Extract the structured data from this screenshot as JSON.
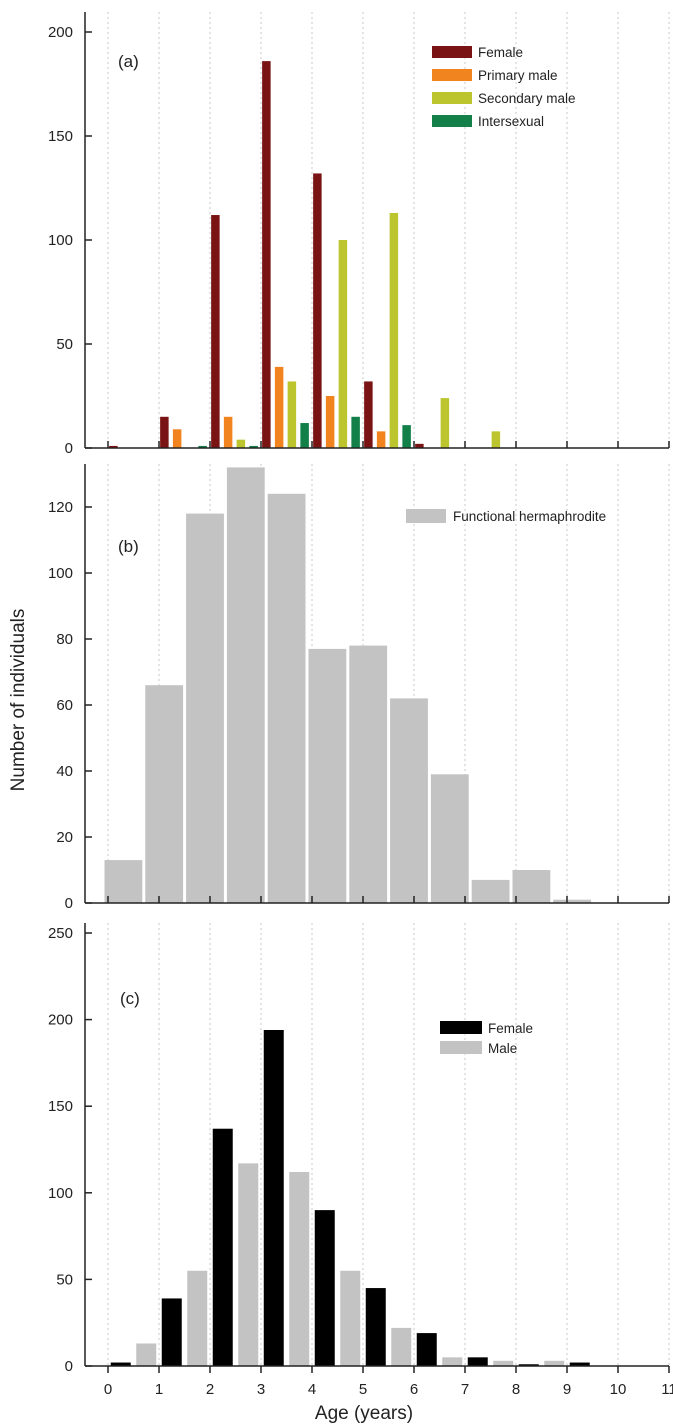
{
  "chart_data": [
    {
      "type": "bar",
      "panel_label": "(a)",
      "ylim": [
        0,
        200
      ],
      "yticks": [
        0,
        50,
        100,
        150,
        200
      ],
      "legend": {
        "placement": "top-right"
      },
      "bin_width": 1,
      "bins_x": [
        0,
        1,
        2,
        3,
        4,
        5,
        6,
        7
      ],
      "series": [
        {
          "name": "Female",
          "color": "#7a1414",
          "values": [
            1,
            15,
            112,
            186,
            132,
            32,
            2,
            0
          ]
        },
        {
          "name": "Primary male",
          "color": "#f2841f",
          "values": [
            0,
            9,
            15,
            39,
            25,
            8,
            0,
            0
          ]
        },
        {
          "name": "Secondary male",
          "color": "#bcc52e",
          "values": [
            0,
            0,
            4,
            32,
            100,
            113,
            24,
            8
          ]
        },
        {
          "name": "Intersexual",
          "color": "#13804a",
          "values": [
            0,
            1,
            1,
            12,
            15,
            11,
            0,
            0
          ]
        }
      ]
    },
    {
      "type": "bar",
      "panel_label": "(b)",
      "ylim": [
        0,
        130
      ],
      "yticks": [
        0,
        20,
        40,
        60,
        80,
        100,
        120
      ],
      "legend": {
        "placement": "top-right"
      },
      "bin_width": 0.8,
      "x_start": 0,
      "series": [
        {
          "name": "Functional hermaphrodite",
          "color": "#c3c3c3",
          "values": [
            13,
            66,
            118,
            132,
            124,
            77,
            78,
            62,
            39,
            7,
            10,
            1,
            0
          ]
        }
      ]
    },
    {
      "type": "bar",
      "panel_label": "(c)",
      "ylim": [
        0,
        250
      ],
      "yticks": [
        0,
        50,
        100,
        150,
        200,
        250
      ],
      "legend": {
        "placement": "top-right"
      },
      "bin_width": 1,
      "bins_x": [
        0,
        1,
        2,
        3,
        4,
        5,
        6,
        7,
        8,
        9
      ],
      "series": [
        {
          "name": "Female",
          "color": "#000000",
          "values": [
            2,
            39,
            137,
            194,
            90,
            45,
            19,
            5,
            1,
            2
          ]
        },
        {
          "name": "Male",
          "color": "#c3c3c3",
          "values": [
            13,
            55,
            117,
            112,
            55,
            22,
            5,
            3,
            3,
            0
          ]
        }
      ]
    }
  ],
  "x_axis": {
    "label": "Age (years)",
    "xlim": [
      0,
      11
    ],
    "ticks": [
      "0",
      "1",
      "2",
      "3",
      "4",
      "5",
      "6",
      "7",
      "8",
      "9",
      "10",
      "11"
    ]
  },
  "y_axis": {
    "label": "Number of individuals"
  },
  "grid": {
    "vertical_dotted": true
  }
}
